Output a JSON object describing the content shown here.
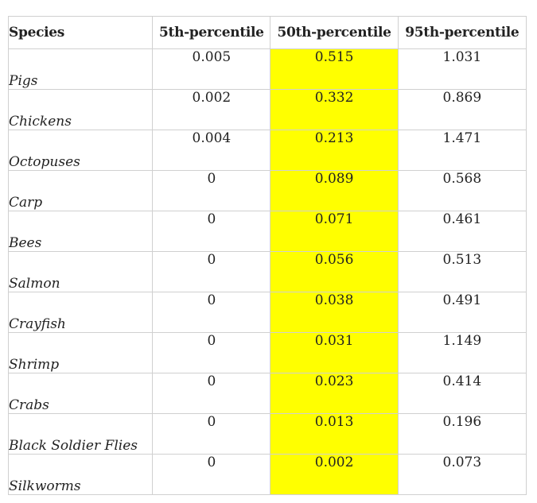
{
  "table": {
    "columns": [
      "Species",
      "5th-percentile",
      "50th-percentile",
      "95th-percentile"
    ],
    "highlight_color": "#ffff00",
    "rows": [
      {
        "species": "Pigs",
        "p5": "0.005",
        "p50": "0.515",
        "p95": "1.031"
      },
      {
        "species": "Chickens",
        "p5": "0.002",
        "p50": "0.332",
        "p95": "0.869"
      },
      {
        "species": "Octopuses",
        "p5": "0.004",
        "p50": "0.213",
        "p95": "1.471"
      },
      {
        "species": "Carp",
        "p5": "0",
        "p50": "0.089",
        "p95": "0.568"
      },
      {
        "species": "Bees",
        "p5": "0",
        "p50": "0.071",
        "p95": "0.461"
      },
      {
        "species": "Salmon",
        "p5": "0",
        "p50": "0.056",
        "p95": "0.513"
      },
      {
        "species": "Crayfish",
        "p5": "0",
        "p50": "0.038",
        "p95": "0.491"
      },
      {
        "species": "Shrimp",
        "p5": "0",
        "p50": "0.031",
        "p95": "1.149"
      },
      {
        "species": "Crabs",
        "p5": "0",
        "p50": "0.023",
        "p95": "0.414"
      },
      {
        "species": "Black Soldier Flies",
        "p5": "0",
        "p50": "0.013",
        "p95": "0.196"
      },
      {
        "species": "Silkworms",
        "p5": "0",
        "p50": "0.002",
        "p95": "0.073"
      }
    ]
  }
}
